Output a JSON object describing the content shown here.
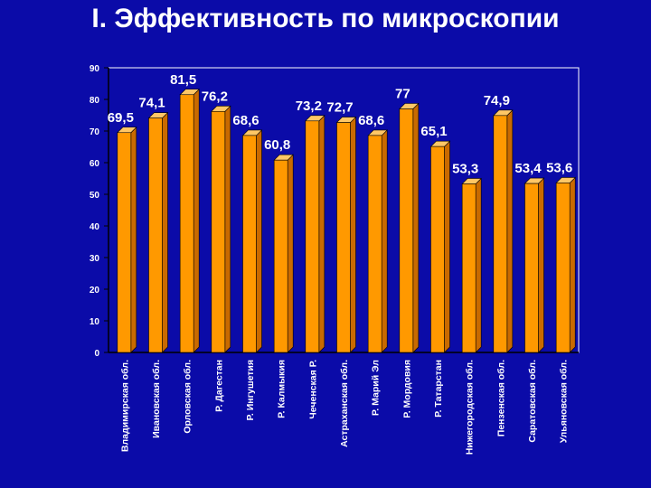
{
  "slide": {
    "title": "I. Эффективность по микроскопии"
  },
  "colors": {
    "background": "#0b0ba8",
    "bar": "#ff9900",
    "bar_side": "#c86a00",
    "bar_top": "#ffc766",
    "text": "#ffffff",
    "axis": "#000000"
  },
  "chart_data": {
    "type": "bar",
    "title": "",
    "xlabel": "",
    "ylabel": "",
    "ylim": [
      0,
      90
    ],
    "yticks": [
      0,
      10,
      20,
      30,
      40,
      50,
      60,
      70,
      80,
      90
    ],
    "grid": false,
    "categories": [
      "Владимирская обл.",
      "Ивановская обл.",
      "Орловская обл.",
      "Р. Дагестан",
      "Р. Ингушетия",
      "Р. Калмыкия",
      "Чеченская Р.",
      "Астраханская обл.",
      "Р. Марий Эл",
      "Р. Мордовия",
      "Р. Татарстан",
      "Нижегородская обл.",
      "Пензенская обл.",
      "Саратовская обл.",
      "Ульяновская обл."
    ],
    "values": [
      69.5,
      74.1,
      81.5,
      76.2,
      68.6,
      60.8,
      73.2,
      72.7,
      68.6,
      77,
      65.1,
      53.3,
      74.9,
      53.4,
      53.6
    ],
    "value_labels": [
      "69,5",
      "74,1",
      "81,5",
      "76,2",
      "68,6",
      "60,8",
      "73,2",
      "72,7",
      "68,6",
      "77",
      "65,1",
      "53,3",
      "74,9",
      "53,4",
      "53,6"
    ]
  }
}
